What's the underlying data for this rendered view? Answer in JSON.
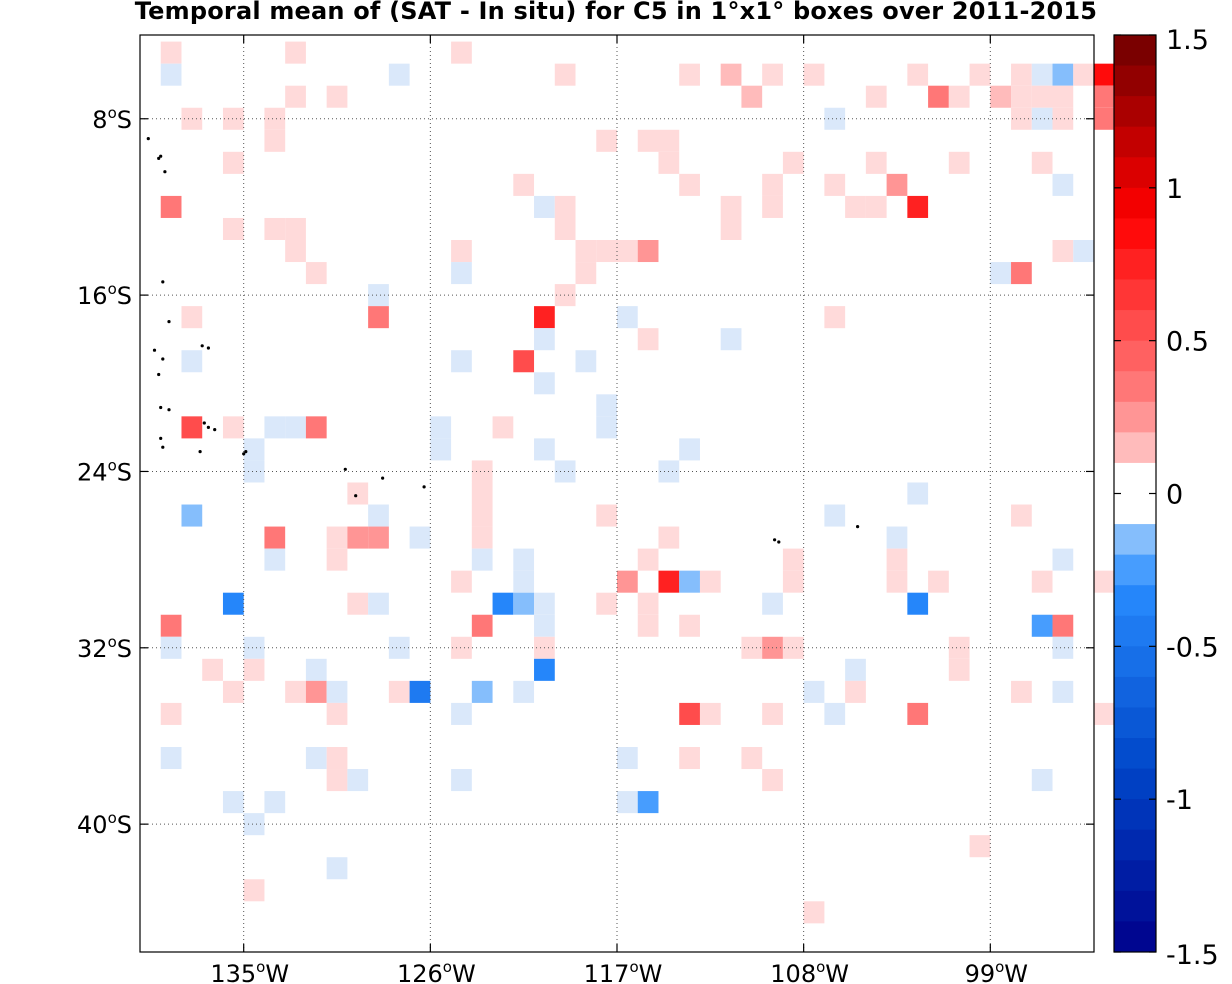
{
  "chart_data": {
    "type": "heatmap",
    "title": "Temporal mean of (SAT - In situ) for C5 in 1°x1° boxes over 2011-2015",
    "x_ticks": [
      {
        "value": -135,
        "deg": "135",
        "hemi": "W"
      },
      {
        "value": -126,
        "deg": "126",
        "hemi": "W"
      },
      {
        "value": -117,
        "deg": "117",
        "hemi": "W"
      },
      {
        "value": -108,
        "deg": "108",
        "hemi": "W"
      },
      {
        "value": -99,
        "deg": "99",
        "hemi": "W"
      }
    ],
    "y_ticks": [
      {
        "value": -8,
        "deg": "8",
        "hemi": "S"
      },
      {
        "value": -16,
        "deg": "16",
        "hemi": "S"
      },
      {
        "value": -24,
        "deg": "24",
        "hemi": "S"
      },
      {
        "value": -32,
        "deg": "32",
        "hemi": "S"
      },
      {
        "value": -40,
        "deg": "40",
        "hemi": "S"
      }
    ],
    "xlim": [
      -140,
      -94
    ],
    "ylim": [
      -45.8,
      -4.2
    ],
    "grid": true,
    "colorbar": {
      "range": [
        -1.5,
        1.5
      ],
      "levels": 30,
      "tick_labels": [
        "1.5",
        "1",
        "0.5",
        "0",
        "-0.5",
        "-1",
        "-1.5"
      ],
      "tick_values": [
        1.5,
        1,
        0.5,
        0,
        -0.5,
        -1,
        -1.5
      ]
    },
    "islands": [
      [
        -139.6,
        -8.9
      ],
      [
        -139.1,
        -9.8
      ],
      [
        -139.0,
        -9.7
      ],
      [
        -138.8,
        -10.4
      ],
      [
        -138.9,
        -15.4
      ],
      [
        -138.6,
        -17.2
      ],
      [
        -139.3,
        -18.5
      ],
      [
        -138.9,
        -18.9
      ],
      [
        -137.0,
        -18.3
      ],
      [
        -136.7,
        -18.4
      ],
      [
        -139.1,
        -19.6
      ],
      [
        -139.0,
        -21.1
      ],
      [
        -138.6,
        -21.2
      ],
      [
        -136.9,
        -21.8
      ],
      [
        -136.4,
        -22.1
      ],
      [
        -136.7,
        -22.0
      ],
      [
        -139.0,
        -22.5
      ],
      [
        -138.9,
        -22.9
      ],
      [
        -135.0,
        -23.2
      ],
      [
        -134.9,
        -23.1
      ],
      [
        -137.1,
        -23.1
      ],
      [
        -130.1,
        -23.9
      ],
      [
        -128.3,
        -24.3
      ],
      [
        -126.3,
        -24.7
      ],
      [
        -129.6,
        -25.1
      ],
      [
        -109.4,
        -27.1
      ],
      [
        -109.2,
        -27.2
      ],
      [
        -105.4,
        -26.5
      ]
    ],
    "cells": [
      [
        -139,
        -5,
        0.05
      ],
      [
        -133,
        -5,
        0.05
      ],
      [
        -125,
        -5,
        0.05
      ],
      [
        -139,
        -6,
        -0.1
      ],
      [
        -128,
        -6,
        -0.1
      ],
      [
        -120,
        -6,
        0.05
      ],
      [
        -114,
        -6,
        0.05
      ],
      [
        -112,
        -6,
        0.15
      ],
      [
        -110,
        -6,
        0.05
      ],
      [
        -108,
        -6,
        0.05
      ],
      [
        -103,
        -6,
        0.05
      ],
      [
        -100,
        -6,
        0.05
      ],
      [
        -98,
        -6,
        0.05
      ],
      [
        -97,
        -6,
        -0.1
      ],
      [
        -96,
        -6,
        -0.2
      ],
      [
        -95,
        -6,
        0.05
      ],
      [
        -94,
        -6,
        0.8
      ],
      [
        -133,
        -7,
        0.05
      ],
      [
        -131,
        -7,
        0.05
      ],
      [
        -111,
        -7,
        0.15
      ],
      [
        -105,
        -7,
        0.05
      ],
      [
        -102,
        -7,
        0.3
      ],
      [
        -101,
        -7,
        0.05
      ],
      [
        -99,
        -7,
        0.15
      ],
      [
        -98,
        -7,
        0.05
      ],
      [
        -97,
        -7,
        0.05
      ],
      [
        -96,
        -7,
        0.05
      ],
      [
        -94,
        -7,
        0.3
      ],
      [
        -138,
        -8,
        0.05
      ],
      [
        -136,
        -8,
        0.05
      ],
      [
        -134,
        -8,
        0.05
      ],
      [
        -107,
        -8,
        -0.1
      ],
      [
        -98,
        -8,
        0.05
      ],
      [
        -97,
        -8,
        -0.1
      ],
      [
        -96,
        -8,
        0.05
      ],
      [
        -94,
        -8,
        0.3
      ],
      [
        -134,
        -9,
        0.05
      ],
      [
        -118,
        -9,
        0.05
      ],
      [
        -116,
        -9,
        0.05
      ],
      [
        -115,
        -9,
        0.05
      ],
      [
        -136,
        -10,
        0.05
      ],
      [
        -115,
        -10,
        0.05
      ],
      [
        -109,
        -10,
        0.05
      ],
      [
        -105,
        -10,
        0.05
      ],
      [
        -101,
        -10,
        0.05
      ],
      [
        -97,
        -10,
        0.05
      ],
      [
        -114,
        -11,
        0.05
      ],
      [
        -110,
        -11,
        0.05
      ],
      [
        -107,
        -11,
        0.05
      ],
      [
        -104,
        -11,
        0.25
      ],
      [
        -122,
        -11,
        0.05
      ],
      [
        -96,
        -11,
        -0.1
      ],
      [
        -139,
        -12,
        0.3
      ],
      [
        -112,
        -12,
        0.05
      ],
      [
        -106,
        -12,
        0.05
      ],
      [
        -121,
        -12,
        -0.1
      ],
      [
        -105,
        -12,
        0.05
      ],
      [
        -110,
        -12,
        0.05
      ],
      [
        -120,
        -12,
        0.05
      ],
      [
        -103,
        -12,
        0.7
      ],
      [
        -136,
        -13,
        0.05
      ],
      [
        -134,
        -13,
        0.05
      ],
      [
        -133,
        -13,
        0.05
      ],
      [
        -120,
        -13,
        0.05
      ],
      [
        -112,
        -13,
        0.05
      ],
      [
        -133,
        -14,
        0.05
      ],
      [
        -125,
        -14,
        0.05
      ],
      [
        -119,
        -14,
        0.05
      ],
      [
        -118,
        -14,
        0.05
      ],
      [
        -117,
        -14,
        0.05
      ],
      [
        -116,
        -14,
        0.25
      ],
      [
        -96,
        -14,
        0.05
      ],
      [
        -95,
        -14,
        -0.1
      ],
      [
        -132,
        -15,
        0.05
      ],
      [
        -125,
        -15,
        -0.1
      ],
      [
        -119,
        -15,
        0.05
      ],
      [
        -99,
        -15,
        -0.1
      ],
      [
        -98,
        -15,
        0.3
      ],
      [
        -120,
        -16,
        0.05
      ],
      [
        -129,
        -16,
        -0.1
      ],
      [
        -138,
        -17,
        0.05
      ],
      [
        -129,
        -17,
        0.3
      ],
      [
        -121,
        -17,
        0.7
      ],
      [
        -117,
        -17,
        -0.1
      ],
      [
        -107,
        -17,
        0.05
      ],
      [
        -121,
        -18,
        -0.1
      ],
      [
        -116,
        -18,
        0.05
      ],
      [
        -112,
        -18,
        -0.1
      ],
      [
        -138,
        -19,
        -0.1
      ],
      [
        -125,
        -19,
        -0.1
      ],
      [
        -122,
        -19,
        0.5
      ],
      [
        -119,
        -19,
        -0.1
      ],
      [
        -121,
        -20,
        -0.1
      ],
      [
        -118,
        -21,
        -0.1
      ],
      [
        -138,
        -22,
        0.5
      ],
      [
        -136,
        -22,
        0.05
      ],
      [
        -134,
        -22,
        -0.1
      ],
      [
        -133,
        -22,
        -0.1
      ],
      [
        -132,
        -22,
        0.3
      ],
      [
        -126,
        -22,
        -0.1
      ],
      [
        -123,
        -22,
        0.05
      ],
      [
        -118,
        -22,
        -0.1
      ],
      [
        -135,
        -23,
        -0.1
      ],
      [
        -126,
        -23,
        -0.1
      ],
      [
        -121,
        -23,
        -0.1
      ],
      [
        -114,
        -23,
        -0.1
      ],
      [
        -135,
        -24,
        -0.1
      ],
      [
        -124,
        -24,
        0.05
      ],
      [
        -120,
        -24,
        -0.1
      ],
      [
        -115,
        -24,
        -0.1
      ],
      [
        -130,
        -25,
        0.05
      ],
      [
        -124,
        -25,
        0.05
      ],
      [
        -103,
        -25,
        -0.1
      ],
      [
        -138,
        -26,
        -0.2
      ],
      [
        -129,
        -26,
        -0.1
      ],
      [
        -124,
        -26,
        0.05
      ],
      [
        -118,
        -26,
        0.05
      ],
      [
        -107,
        -26,
        -0.1
      ],
      [
        -98,
        -26,
        0.05
      ],
      [
        -134,
        -27,
        0.3
      ],
      [
        -131,
        -27,
        0.05
      ],
      [
        -130,
        -27,
        0.25
      ],
      [
        -129,
        -27,
        0.25
      ],
      [
        -127,
        -27,
        -0.1
      ],
      [
        -124,
        -27,
        0.05
      ],
      [
        -115,
        -27,
        0.05
      ],
      [
        -104,
        -27,
        -0.1
      ],
      [
        -134,
        -28,
        -0.1
      ],
      [
        -131,
        -28,
        0.05
      ],
      [
        -124,
        -28,
        -0.1
      ],
      [
        -122,
        -28,
        -0.1
      ],
      [
        -116,
        -28,
        0.05
      ],
      [
        -109,
        -28,
        0.05
      ],
      [
        -104,
        -28,
        0.05
      ],
      [
        -96,
        -28,
        -0.1
      ],
      [
        -122,
        -29,
        -0.1
      ],
      [
        -125,
        -29,
        0.05
      ],
      [
        -117,
        -29,
        0.25
      ],
      [
        -115,
        -29,
        0.7
      ],
      [
        -114,
        -29,
        -0.2
      ],
      [
        -113,
        -29,
        0.05
      ],
      [
        -109,
        -29,
        0.05
      ],
      [
        -104,
        -29,
        0.05
      ],
      [
        -102,
        -29,
        0.05
      ],
      [
        -97,
        -29,
        0.05
      ],
      [
        -94,
        -29,
        0.05
      ],
      [
        -136,
        -30,
        -0.3
      ],
      [
        -130,
        -30,
        0.05
      ],
      [
        -129,
        -30,
        -0.1
      ],
      [
        -123,
        -30,
        -0.35
      ],
      [
        -122,
        -30,
        -0.2
      ],
      [
        -121,
        -30,
        -0.1
      ],
      [
        -118,
        -30,
        0.05
      ],
      [
        -116,
        -30,
        0.05
      ],
      [
        -110,
        -30,
        -0.1
      ],
      [
        -103,
        -30,
        -0.3
      ],
      [
        -139,
        -31,
        0.3
      ],
      [
        -124,
        -31,
        0.3
      ],
      [
        -121,
        -31,
        -0.1
      ],
      [
        -116,
        -31,
        0.05
      ],
      [
        -114,
        -31,
        0.05
      ],
      [
        -97,
        -31,
        -0.25
      ],
      [
        -96,
        -31,
        0.3
      ],
      [
        -139,
        -32,
        -0.1
      ],
      [
        -135,
        -32,
        -0.1
      ],
      [
        -128,
        -32,
        -0.1
      ],
      [
        -125,
        -32,
        0.05
      ],
      [
        -121,
        -32,
        0.05
      ],
      [
        -111,
        -32,
        0.05
      ],
      [
        -110,
        -32,
        0.25
      ],
      [
        -109,
        -32,
        0.05
      ],
      [
        -101,
        -32,
        0.05
      ],
      [
        -96,
        -32,
        -0.1
      ],
      [
        -137,
        -33,
        0.05
      ],
      [
        -135,
        -33,
        0.05
      ],
      [
        -132,
        -33,
        -0.1
      ],
      [
        -121,
        -33,
        -0.4
      ],
      [
        -106,
        -33,
        -0.1
      ],
      [
        -101,
        -33,
        0.05
      ],
      [
        -136,
        -34,
        0.05
      ],
      [
        -133,
        -34,
        0.05
      ],
      [
        -132,
        -34,
        0.25
      ],
      [
        -131,
        -34,
        -0.1
      ],
      [
        -128,
        -34,
        0.05
      ],
      [
        -127,
        -34,
        -0.45
      ],
      [
        -124,
        -34,
        -0.2
      ],
      [
        -122,
        -34,
        -0.1
      ],
      [
        -108,
        -34,
        -0.1
      ],
      [
        -106,
        -34,
        0.05
      ],
      [
        -98,
        -34,
        0.05
      ],
      [
        -96,
        -34,
        -0.1
      ],
      [
        -139,
        -35,
        0.05
      ],
      [
        -131,
        -35,
        0.05
      ],
      [
        -125,
        -35,
        -0.1
      ],
      [
        -114,
        -35,
        0.5
      ],
      [
        -113,
        -35,
        0.05
      ],
      [
        -110,
        -35,
        0.05
      ],
      [
        -107,
        -35,
        -0.1
      ],
      [
        -103,
        -35,
        0.3
      ],
      [
        -94,
        -35,
        0.05
      ],
      [
        -139,
        -37,
        -0.1
      ],
      [
        -132,
        -37,
        -0.1
      ],
      [
        -131,
        -37,
        0.05
      ],
      [
        -117,
        -37,
        -0.1
      ],
      [
        -114,
        -37,
        0.05
      ],
      [
        -111,
        -37,
        0.05
      ],
      [
        -131,
        -38,
        0.05
      ],
      [
        -130,
        -38,
        -0.1
      ],
      [
        -125,
        -38,
        -0.1
      ],
      [
        -110,
        -38,
        0.05
      ],
      [
        -97,
        -38,
        -0.1
      ],
      [
        -136,
        -39,
        -0.1
      ],
      [
        -134,
        -39,
        -0.1
      ],
      [
        -117,
        -39,
        -0.1
      ],
      [
        -116,
        -39,
        -0.25
      ],
      [
        -135,
        -40,
        -0.1
      ],
      [
        -100,
        -41,
        0.05
      ],
      [
        -131,
        -42,
        -0.1
      ],
      [
        -135,
        -43,
        0.05
      ],
      [
        -108,
        -44,
        0.05
      ]
    ]
  }
}
